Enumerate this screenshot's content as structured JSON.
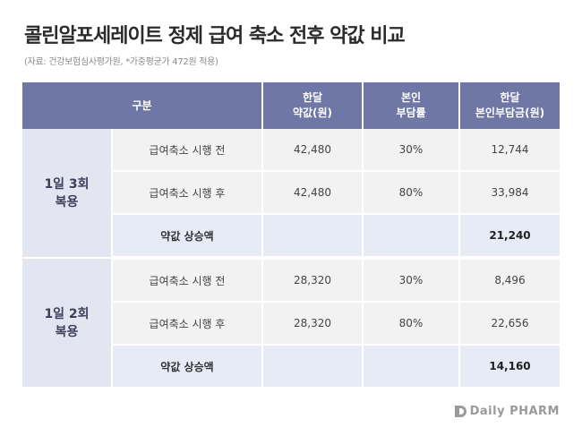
{
  "title": "콜린알포세레이트 정제 급여 축소 전후 약값 비교",
  "subtitle": "(자료: 건강보험심사평가원, *가중평균가 472원 적용)",
  "table": {
    "headers": {
      "category": "구분",
      "monthly_price_line1": "한달",
      "monthly_price_line2": "약값(원)",
      "copay_rate_line1": "본인",
      "copay_rate_line2": "부담률",
      "copay_amount_line1": "한달",
      "copay_amount_line2": "본인부담금(원)"
    },
    "groups": [
      {
        "label_line1": "1일 3회",
        "label_line2": "복용",
        "rows": [
          {
            "label": "급여축소 시행 전",
            "price": "42,480",
            "rate": "30%",
            "copay": "12,744"
          },
          {
            "label": "급여축소 시행 후",
            "price": "42,480",
            "rate": "80%",
            "copay": "33,984"
          }
        ],
        "sum": {
          "label": "약값 상승액",
          "price": "",
          "rate": "",
          "copay": "21,240"
        }
      },
      {
        "label_line1": "1일 2회",
        "label_line2": "복용",
        "rows": [
          {
            "label": "급여축소 시행 전",
            "price": "28,320",
            "rate": "30%",
            "copay": "8,496"
          },
          {
            "label": "급여축소 시행 후",
            "price": "28,320",
            "rate": "80%",
            "copay": "22,656"
          }
        ],
        "sum": {
          "label": "약값 상승액",
          "price": "",
          "rate": "",
          "copay": "14,160"
        }
      }
    ]
  },
  "brand": {
    "name": "Daily PHARM",
    "icon": "dailypharm-logo-icon"
  }
}
